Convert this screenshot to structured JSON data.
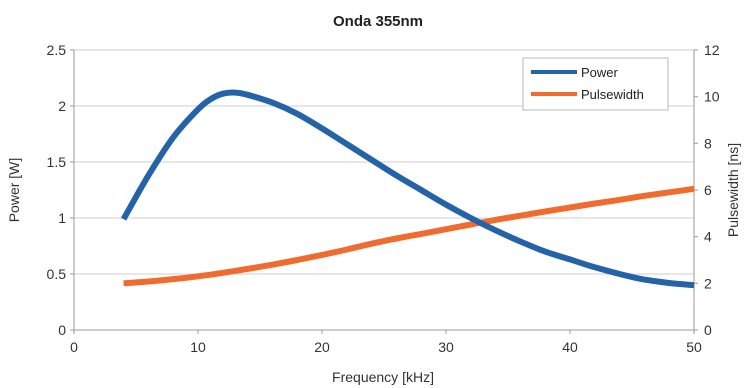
{
  "chart_data": {
    "type": "line",
    "title": "Onda 355nm",
    "xlabel": "Frequency [kHz]",
    "ylabel": "Power [W]",
    "y2label": "Pulsewidth [ns]",
    "xlim": [
      0,
      50
    ],
    "ylim": [
      0,
      2.5
    ],
    "y2lim": [
      0,
      12
    ],
    "x_ticks": [
      "0",
      "10",
      "20",
      "30",
      "40",
      "50"
    ],
    "y_ticks": [
      "0",
      "0.5",
      "1",
      "1.5",
      "2",
      "2.5"
    ],
    "y2_ticks": [
      "0",
      "2",
      "4",
      "6",
      "8",
      "10",
      "12"
    ],
    "grid": "horizontal",
    "legend_position": "top-right",
    "series": [
      {
        "name": "Power",
        "axis": "left",
        "color": "#2563a8",
        "x": [
          4,
          6,
          8,
          10,
          11,
          12,
          13,
          14,
          16,
          18,
          20,
          22,
          24,
          26,
          28,
          30,
          32,
          34,
          36,
          38,
          40,
          42,
          44,
          46,
          48,
          50
        ],
        "y": [
          0.99,
          1.38,
          1.72,
          1.97,
          2.06,
          2.11,
          2.12,
          2.1,
          2.03,
          1.93,
          1.8,
          1.66,
          1.52,
          1.38,
          1.25,
          1.12,
          1.0,
          0.89,
          0.79,
          0.7,
          0.63,
          0.56,
          0.5,
          0.45,
          0.42,
          0.4
        ]
      },
      {
        "name": "Pulsewidth",
        "axis": "right",
        "color": "#f26b2e",
        "x": [
          4,
          6,
          8,
          10,
          12,
          14,
          16,
          18,
          20,
          22,
          24,
          26,
          28,
          30,
          32,
          34,
          36,
          38,
          40,
          42,
          44,
          46,
          48,
          50
        ],
        "y": [
          2.0,
          2.08,
          2.18,
          2.3,
          2.45,
          2.62,
          2.8,
          3.0,
          3.22,
          3.45,
          3.7,
          3.92,
          4.12,
          4.32,
          4.52,
          4.72,
          4.9,
          5.08,
          5.25,
          5.42,
          5.58,
          5.75,
          5.9,
          6.05
        ]
      }
    ]
  }
}
